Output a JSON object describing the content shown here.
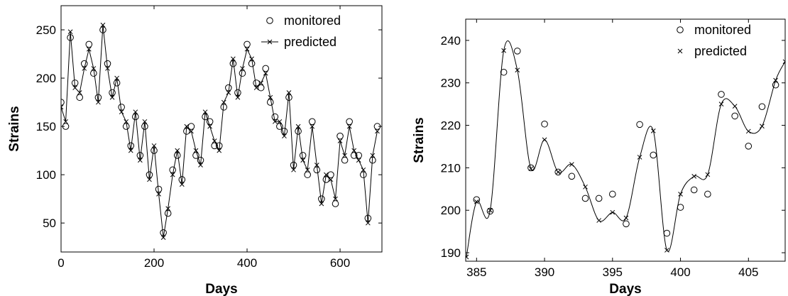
{
  "chart_data": [
    {
      "type": "line",
      "xlabel": "Days",
      "ylabel": "Strains",
      "xlim": [
        0,
        690
      ],
      "ylim": [
        20,
        275
      ],
      "xticks": [
        0,
        200,
        400,
        600
      ],
      "yticks": [
        50,
        100,
        150,
        200,
        250
      ],
      "grid": false,
      "legend": "top-right",
      "series": [
        {
          "name": "monitored",
          "marker": "circle",
          "x": [
            0,
            10,
            20,
            30,
            40,
            50,
            60,
            70,
            80,
            90,
            100,
            110,
            120,
            130,
            140,
            150,
            160,
            170,
            180,
            190,
            200,
            210,
            220,
            230,
            240,
            250,
            260,
            270,
            280,
            290,
            300,
            310,
            320,
            330,
            340,
            350,
            360,
            370,
            380,
            390,
            400,
            410,
            420,
            430,
            440,
            450,
            460,
            470,
            480,
            490,
            500,
            510,
            520,
            530,
            540,
            550,
            560,
            570,
            580,
            590,
            600,
            610,
            620,
            630,
            640,
            650,
            660,
            670,
            680
          ],
          "y": [
            175,
            150,
            242,
            195,
            180,
            215,
            235,
            205,
            180,
            250,
            215,
            185,
            195,
            170,
            150,
            130,
            160,
            120,
            150,
            100,
            125,
            85,
            40,
            60,
            105,
            120,
            95,
            145,
            150,
            120,
            115,
            160,
            155,
            130,
            130,
            170,
            190,
            215,
            185,
            205,
            235,
            215,
            195,
            190,
            210,
            175,
            160,
            150,
            145,
            180,
            110,
            145,
            120,
            100,
            155,
            105,
            75,
            95,
            100,
            70,
            140,
            115,
            155,
            120,
            120,
            100,
            55,
            115,
            150
          ]
        },
        {
          "name": "predicted",
          "marker": "x",
          "x": [
            0,
            10,
            20,
            30,
            40,
            50,
            60,
            70,
            80,
            90,
            100,
            110,
            120,
            130,
            140,
            150,
            160,
            170,
            180,
            190,
            200,
            210,
            220,
            230,
            240,
            250,
            260,
            270,
            280,
            290,
            300,
            310,
            320,
            330,
            340,
            350,
            360,
            370,
            380,
            390,
            400,
            410,
            420,
            430,
            440,
            450,
            460,
            470,
            480,
            490,
            500,
            510,
            520,
            530,
            540,
            550,
            560,
            570,
            580,
            590,
            600,
            610,
            620,
            630,
            640,
            650,
            660,
            670,
            680
          ],
          "y": [
            170,
            155,
            248,
            190,
            185,
            210,
            230,
            210,
            175,
            255,
            210,
            180,
            200,
            165,
            155,
            125,
            165,
            115,
            155,
            95,
            130,
            80,
            35,
            65,
            100,
            125,
            90,
            150,
            145,
            125,
            110,
            165,
            150,
            135,
            125,
            175,
            185,
            220,
            180,
            210,
            230,
            220,
            190,
            195,
            205,
            180,
            155,
            155,
            140,
            185,
            105,
            150,
            115,
            105,
            150,
            110,
            70,
            100,
            95,
            75,
            135,
            120,
            150,
            125,
            115,
            105,
            50,
            120,
            145
          ]
        }
      ]
    },
    {
      "type": "line",
      "xlabel": "Days",
      "ylabel": "Strains",
      "xlim": [
        384.2,
        407.7
      ],
      "ylim": [
        188,
        245
      ],
      "xticks": [
        385,
        390,
        395,
        400,
        405
      ],
      "yticks": [
        190,
        200,
        210,
        220,
        230,
        240
      ],
      "grid": false,
      "legend": "top-right",
      "series": [
        {
          "name": "monitored",
          "marker": "circle",
          "x": [
            385,
            386,
            387,
            388,
            389,
            390,
            391,
            392,
            393,
            394,
            395,
            396,
            397,
            398,
            399,
            400,
            401,
            402,
            403,
            404,
            405,
            406,
            407
          ],
          "y": [
            202.5,
            199.8,
            232.5,
            237.5,
            210,
            220.3,
            209,
            208,
            202.8,
            202.8,
            203.8,
            196.8,
            220.2,
            213,
            194.6,
            200.7,
            204.8,
            203.8,
            227.3,
            222.2,
            215.1,
            224.4,
            229.5
          ]
        },
        {
          "name": "predicted",
          "marker": "x",
          "x": [
            384.25,
            385,
            386,
            387,
            388,
            389,
            390,
            391,
            392,
            393,
            394,
            395,
            396,
            397,
            398,
            399,
            400,
            401,
            402,
            403,
            404,
            405,
            406,
            407,
            407.7
          ],
          "y": [
            189,
            202,
            200,
            237.6,
            233,
            209.8,
            216.6,
            209,
            210.8,
            205.5,
            197.6,
            199.5,
            198.2,
            212.5,
            218.7,
            190.6,
            203.8,
            208,
            208.4,
            225,
            224.5,
            218.6,
            219.8,
            230.6,
            235
          ]
        }
      ]
    }
  ]
}
